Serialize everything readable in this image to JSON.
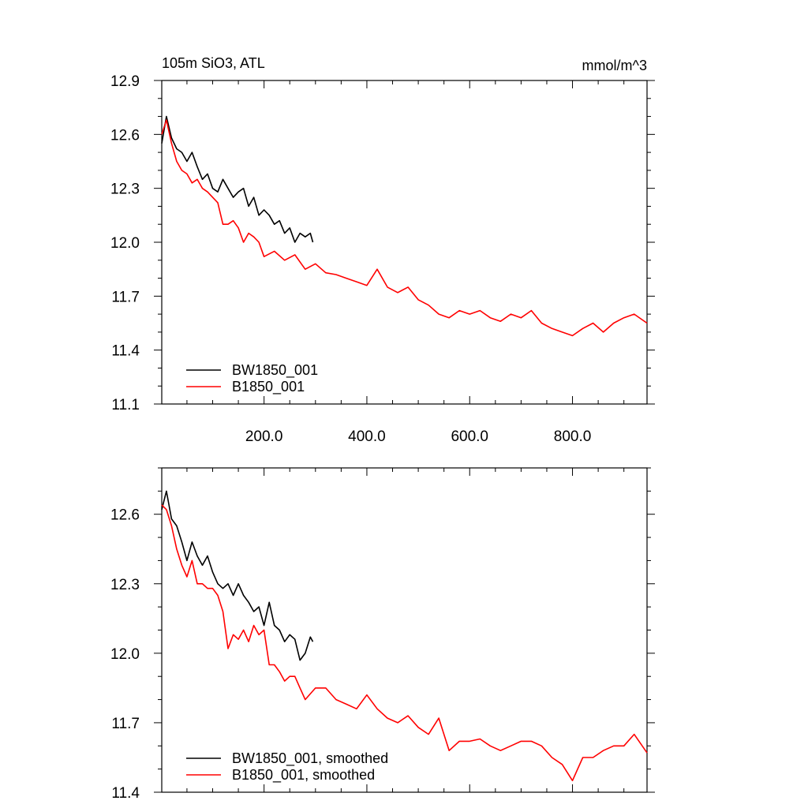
{
  "chart_data": [
    {
      "type": "line",
      "title": "105m SiO3, ATL",
      "units": "mmol/m^3",
      "xlabel": "",
      "ylabel": "",
      "xlim": [
        1,
        945
      ],
      "ylim": [
        11.1,
        12.9
      ],
      "x_ticks": [
        "200.0",
        "400.0",
        "600.0",
        "800.0"
      ],
      "y_ticks": [
        "11.1",
        "11.4",
        "11.7",
        "12.0",
        "12.3",
        "12.6",
        "12.9"
      ],
      "grid": false,
      "legend_position": "bottom-left",
      "series": [
        {
          "name": "BW1850_001",
          "color": "#000000",
          "x": [
            1,
            10,
            20,
            30,
            40,
            50,
            60,
            70,
            80,
            90,
            100,
            110,
            120,
            130,
            140,
            150,
            160,
            170,
            180,
            190,
            200,
            210,
            220,
            230,
            240,
            250,
            260,
            270,
            280,
            290,
            295
          ],
          "y": [
            12.55,
            12.7,
            12.58,
            12.52,
            12.5,
            12.45,
            12.5,
            12.42,
            12.35,
            12.38,
            12.3,
            12.28,
            12.35,
            12.3,
            12.25,
            12.28,
            12.3,
            12.2,
            12.25,
            12.15,
            12.18,
            12.15,
            12.1,
            12.12,
            12.05,
            12.08,
            12.0,
            12.05,
            12.03,
            12.05,
            12.0
          ]
        },
        {
          "name": "B1850_001",
          "color": "#ff0000",
          "x": [
            1,
            10,
            20,
            30,
            40,
            50,
            60,
            70,
            80,
            90,
            100,
            110,
            120,
            130,
            140,
            150,
            160,
            170,
            180,
            190,
            200,
            220,
            240,
            260,
            280,
            300,
            320,
            340,
            360,
            380,
            400,
            420,
            440,
            460,
            480,
            500,
            520,
            540,
            560,
            580,
            600,
            620,
            640,
            660,
            680,
            700,
            720,
            740,
            760,
            780,
            800,
            820,
            840,
            860,
            880,
            900,
            920,
            945
          ],
          "y": [
            12.6,
            12.68,
            12.55,
            12.45,
            12.4,
            12.38,
            12.33,
            12.35,
            12.3,
            12.28,
            12.25,
            12.22,
            12.1,
            12.1,
            12.12,
            12.08,
            12.0,
            12.05,
            12.03,
            12.0,
            11.92,
            11.95,
            11.9,
            11.93,
            11.85,
            11.88,
            11.83,
            11.82,
            11.8,
            11.78,
            11.76,
            11.85,
            11.75,
            11.72,
            11.75,
            11.68,
            11.65,
            11.6,
            11.58,
            11.62,
            11.6,
            11.62,
            11.58,
            11.56,
            11.6,
            11.58,
            11.62,
            11.55,
            11.52,
            11.5,
            11.48,
            11.52,
            11.55,
            11.5,
            11.55,
            11.58,
            11.6,
            11.55
          ]
        }
      ]
    },
    {
      "type": "line",
      "title": "",
      "xlabel": "",
      "ylabel": "",
      "xlim": [
        1,
        945
      ],
      "ylim": [
        11.4,
        12.8
      ],
      "y_ticks": [
        "11.4",
        "11.7",
        "12.0",
        "12.3",
        "12.6"
      ],
      "grid": false,
      "legend_position": "bottom-left",
      "series": [
        {
          "name": "BW1850_001, smoothed",
          "color": "#000000",
          "x": [
            1,
            10,
            20,
            30,
            40,
            50,
            60,
            70,
            80,
            90,
            100,
            110,
            120,
            130,
            140,
            150,
            160,
            170,
            180,
            190,
            200,
            210,
            220,
            230,
            240,
            250,
            260,
            270,
            280,
            290,
            295
          ],
          "y": [
            12.62,
            12.7,
            12.58,
            12.55,
            12.48,
            12.4,
            12.48,
            12.42,
            12.38,
            12.42,
            12.35,
            12.3,
            12.28,
            12.3,
            12.25,
            12.3,
            12.25,
            12.22,
            12.18,
            12.2,
            12.12,
            12.22,
            12.12,
            12.1,
            12.05,
            12.08,
            12.06,
            11.97,
            12.0,
            12.07,
            12.05
          ]
        },
        {
          "name": "B1850_001, smoothed",
          "color": "#ff0000",
          "x": [
            1,
            10,
            20,
            30,
            40,
            50,
            60,
            70,
            80,
            90,
            100,
            110,
            120,
            130,
            140,
            150,
            160,
            170,
            180,
            190,
            200,
            210,
            220,
            230,
            240,
            250,
            260,
            270,
            280,
            300,
            320,
            340,
            360,
            380,
            400,
            420,
            440,
            460,
            480,
            500,
            520,
            540,
            560,
            580,
            600,
            620,
            640,
            660,
            680,
            700,
            720,
            740,
            760,
            780,
            800,
            820,
            840,
            860,
            880,
            900,
            920,
            945
          ],
          "y": [
            12.64,
            12.62,
            12.55,
            12.45,
            12.38,
            12.33,
            12.4,
            12.3,
            12.3,
            12.28,
            12.28,
            12.25,
            12.18,
            12.02,
            12.08,
            12.06,
            12.1,
            12.05,
            12.12,
            12.08,
            12.1,
            11.95,
            11.95,
            11.92,
            11.88,
            11.9,
            11.9,
            11.85,
            11.8,
            11.85,
            11.85,
            11.8,
            11.78,
            11.76,
            11.82,
            11.76,
            11.72,
            11.7,
            11.73,
            11.68,
            11.65,
            11.72,
            11.58,
            11.62,
            11.62,
            11.63,
            11.6,
            11.58,
            11.6,
            11.62,
            11.62,
            11.6,
            11.55,
            11.52,
            11.45,
            11.55,
            11.55,
            11.58,
            11.6,
            11.6,
            11.65,
            11.57
          ]
        }
      ]
    }
  ]
}
